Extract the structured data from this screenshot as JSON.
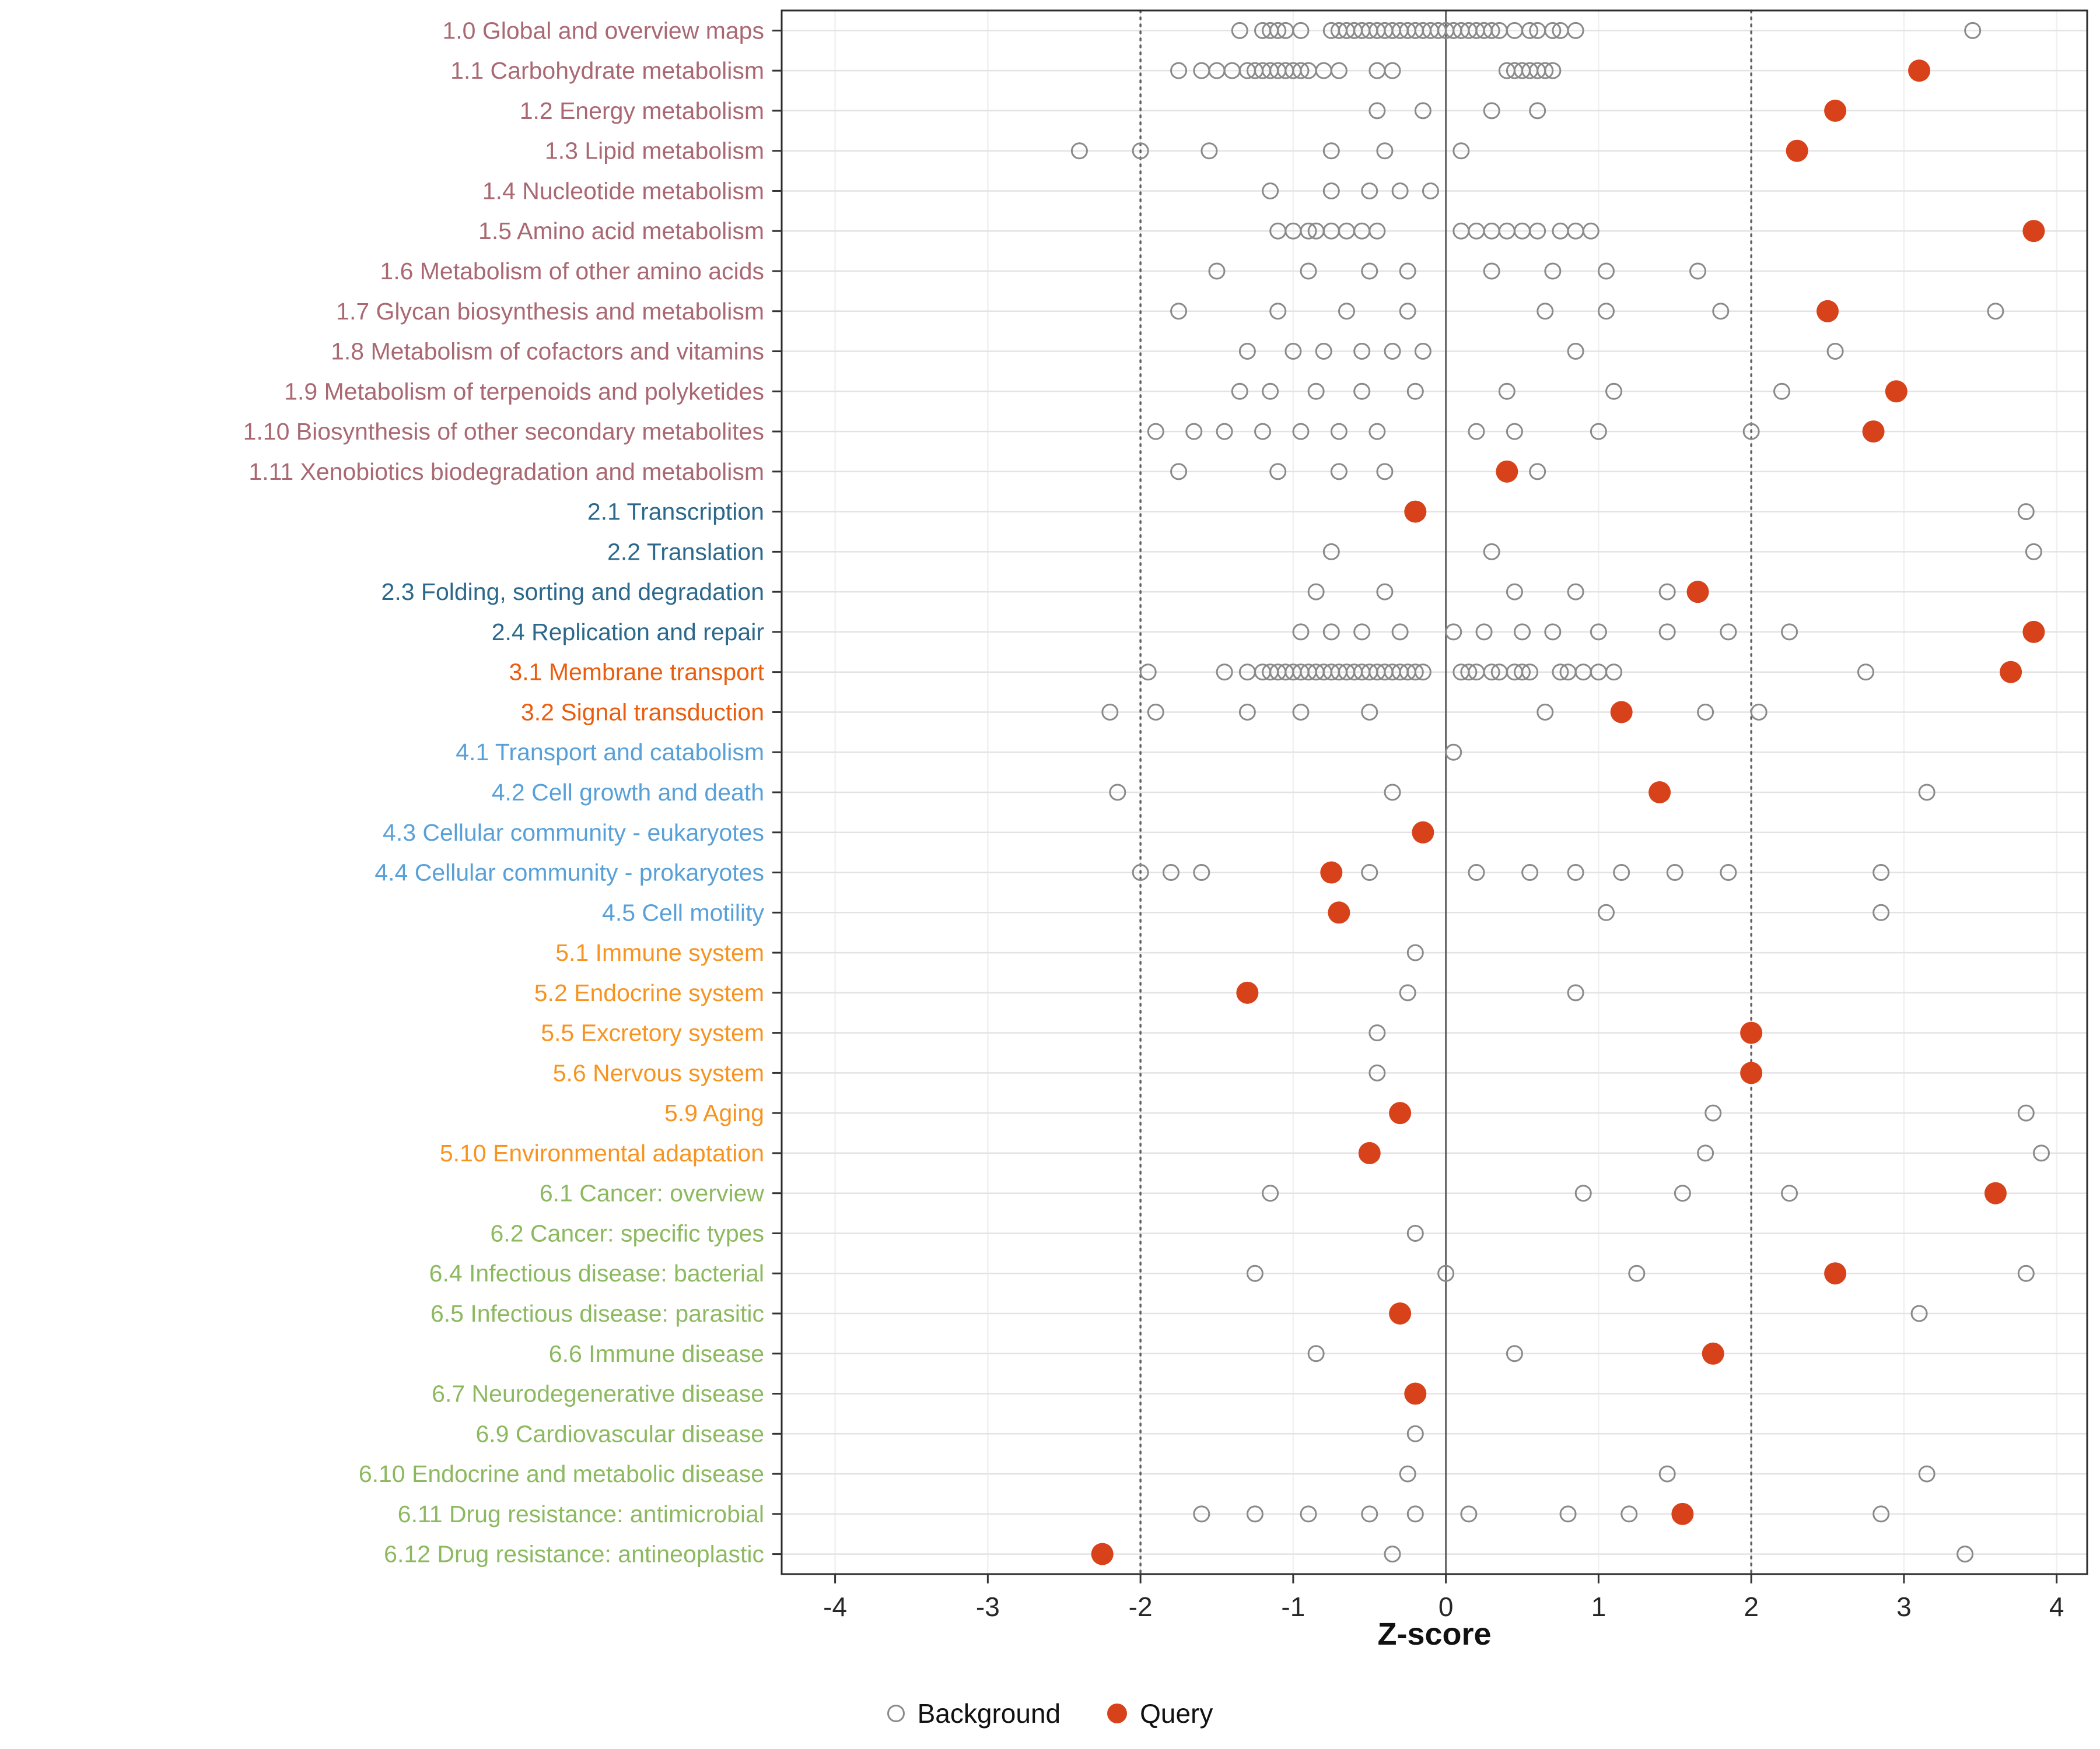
{
  "chart_data": {
    "type": "scatter",
    "title": "",
    "xlabel": "Z-score",
    "ylabel": "",
    "xlim": [
      -4.35,
      4.2
    ],
    "x_ticks": [
      -4,
      -3,
      -2,
      -1,
      0,
      1,
      2,
      3,
      4
    ],
    "grid": true,
    "reference_lines": {
      "solid": [
        0
      ],
      "dotted": [
        -2,
        2
      ]
    },
    "legend_position": "bottom-center",
    "legend": [
      {
        "label": "Background",
        "style": "open"
      },
      {
        "label": "Query",
        "style": "filled"
      }
    ],
    "colors": {
      "background_point": "#8a8a8a",
      "query_point": "#d8421a",
      "grid": "#e3e3e3",
      "minor_grid": "#f0f0f0",
      "reference": "#5f5f5f",
      "axis_text": "#262626",
      "panel_border": "#2b2b2b"
    },
    "group_colors": {
      "metabolism": "#a96872",
      "genetic": "#2b688c",
      "environmental": "#ea5d0e",
      "cellular": "#58a0d8",
      "organismal": "#f79421",
      "disease": "#8cb95f"
    },
    "categories": [
      {
        "label": "1.0 Global and overview maps",
        "group": "metabolism",
        "background": [
          -1.35,
          -1.2,
          -1.15,
          -1.1,
          -1.05,
          -0.95,
          -0.75,
          -0.7,
          -0.65,
          -0.6,
          -0.55,
          -0.5,
          -0.45,
          -0.4,
          -0.35,
          -0.3,
          -0.25,
          -0.2,
          -0.15,
          -0.1,
          -0.05,
          0,
          0.05,
          0.1,
          0.15,
          0.2,
          0.25,
          0.3,
          0.35,
          0.45,
          0.55,
          0.6,
          0.7,
          0.75,
          0.85,
          3.45
        ],
        "query": []
      },
      {
        "label": "1.1 Carbohydrate metabolism",
        "group": "metabolism",
        "background": [
          -1.75,
          -1.6,
          -1.5,
          -1.4,
          -1.3,
          -1.25,
          -1.2,
          -1.15,
          -1.1,
          -1.05,
          -1.0,
          -0.95,
          -0.9,
          -0.8,
          -0.7,
          -0.45,
          -0.35,
          0.4,
          0.45,
          0.5,
          0.55,
          0.6,
          0.65,
          0.7
        ],
        "query": [
          3.1
        ]
      },
      {
        "label": "1.2 Energy metabolism",
        "group": "metabolism",
        "background": [
          -0.45,
          -0.15,
          0.3,
          0.6
        ],
        "query": [
          2.55
        ]
      },
      {
        "label": "1.3 Lipid metabolism",
        "group": "metabolism",
        "background": [
          -2.4,
          -2.0,
          -1.55,
          -0.75,
          -0.4,
          0.1
        ],
        "query": [
          2.3
        ]
      },
      {
        "label": "1.4 Nucleotide metabolism",
        "group": "metabolism",
        "background": [
          -1.15,
          -0.75,
          -0.5,
          -0.3,
          -0.1
        ],
        "query": []
      },
      {
        "label": "1.5 Amino acid metabolism",
        "group": "metabolism",
        "background": [
          -1.1,
          -1.0,
          -0.9,
          -0.85,
          -0.75,
          -0.65,
          -0.55,
          -0.45,
          0.1,
          0.2,
          0.3,
          0.4,
          0.5,
          0.6,
          0.75,
          0.85,
          0.95
        ],
        "query": [
          3.85
        ]
      },
      {
        "label": "1.6 Metabolism of other amino acids",
        "group": "metabolism",
        "background": [
          -1.5,
          -0.9,
          -0.5,
          -0.25,
          0.3,
          0.7,
          1.05,
          1.65
        ],
        "query": []
      },
      {
        "label": "1.7 Glycan biosynthesis and metabolism",
        "group": "metabolism",
        "background": [
          -1.75,
          -1.1,
          -0.65,
          -0.25,
          0.65,
          1.05,
          1.8,
          3.6
        ],
        "query": [
          2.5
        ]
      },
      {
        "label": "1.8 Metabolism of cofactors and vitamins",
        "group": "metabolism",
        "background": [
          -1.3,
          -1.0,
          -0.8,
          -0.55,
          -0.35,
          -0.15,
          0.85,
          2.55
        ],
        "query": []
      },
      {
        "label": "1.9 Metabolism of terpenoids and polyketides",
        "group": "metabolism",
        "background": [
          -1.35,
          -1.15,
          -0.85,
          -0.55,
          -0.2,
          0.4,
          1.1,
          2.2
        ],
        "query": [
          2.95
        ]
      },
      {
        "label": "1.10 Biosynthesis of other secondary metabolites",
        "group": "metabolism",
        "background": [
          -1.9,
          -1.65,
          -1.45,
          -1.2,
          -0.95,
          -0.7,
          -0.45,
          0.2,
          0.45,
          1.0,
          2.0
        ],
        "query": [
          2.8
        ]
      },
      {
        "label": "1.11 Xenobiotics biodegradation and metabolism",
        "group": "metabolism",
        "background": [
          -1.75,
          -1.1,
          -0.7,
          -0.4,
          0.6
        ],
        "query": [
          0.4
        ]
      },
      {
        "label": "2.1 Transcription",
        "group": "genetic",
        "background": [
          3.8
        ],
        "query": [
          -0.2
        ]
      },
      {
        "label": "2.2 Translation",
        "group": "genetic",
        "background": [
          -0.75,
          0.3,
          3.85
        ],
        "query": []
      },
      {
        "label": "2.3 Folding, sorting and degradation",
        "group": "genetic",
        "background": [
          -0.85,
          -0.4,
          0.45,
          0.85,
          1.45
        ],
        "query": [
          1.65
        ]
      },
      {
        "label": "2.4 Replication and repair",
        "group": "genetic",
        "background": [
          -0.95,
          -0.75,
          -0.55,
          -0.3,
          0.05,
          0.25,
          0.5,
          0.7,
          1.0,
          1.45,
          1.85,
          2.25
        ],
        "query": [
          3.85
        ]
      },
      {
        "label": "3.1 Membrane transport",
        "group": "environmental",
        "background": [
          -1.95,
          -1.45,
          -1.3,
          -1.2,
          -1.15,
          -1.1,
          -1.05,
          -1.0,
          -0.95,
          -0.9,
          -0.85,
          -0.8,
          -0.75,
          -0.7,
          -0.65,
          -0.6,
          -0.55,
          -0.5,
          -0.45,
          -0.4,
          -0.35,
          -0.3,
          -0.25,
          -0.2,
          -0.15,
          0.1,
          0.15,
          0.2,
          0.3,
          0.35,
          0.45,
          0.5,
          0.55,
          0.75,
          0.8,
          0.9,
          1.0,
          1.1,
          2.75
        ],
        "query": [
          3.7
        ]
      },
      {
        "label": "3.2 Signal transduction",
        "group": "environmental",
        "background": [
          -2.2,
          -1.9,
          -1.3,
          -0.95,
          -0.5,
          0.65,
          1.7,
          2.05
        ],
        "query": [
          1.15
        ]
      },
      {
        "label": "4.1 Transport and catabolism",
        "group": "cellular",
        "background": [
          0.05
        ],
        "query": []
      },
      {
        "label": "4.2 Cell growth and death",
        "group": "cellular",
        "background": [
          -2.15,
          -0.35,
          3.15
        ],
        "query": [
          1.4
        ]
      },
      {
        "label": "4.3 Cellular community - eukaryotes",
        "group": "cellular",
        "background": [],
        "query": [
          -0.15
        ]
      },
      {
        "label": "4.4 Cellular community - prokaryotes",
        "group": "cellular",
        "background": [
          -2.0,
          -1.8,
          -1.6,
          -0.5,
          0.2,
          0.55,
          0.85,
          1.15,
          1.5,
          1.85,
          2.85
        ],
        "query": [
          -0.75
        ]
      },
      {
        "label": "4.5 Cell motility",
        "group": "cellular",
        "background": [
          1.05,
          2.85
        ],
        "query": [
          -0.7
        ]
      },
      {
        "label": "5.1 Immune system",
        "group": "organismal",
        "background": [
          -0.2
        ],
        "query": []
      },
      {
        "label": "5.2 Endocrine system",
        "group": "organismal",
        "background": [
          -0.25,
          0.85
        ],
        "query": [
          -1.3
        ]
      },
      {
        "label": "5.5 Excretory system",
        "group": "organismal",
        "background": [
          -0.45
        ],
        "query": [
          2.0
        ]
      },
      {
        "label": "5.6 Nervous system",
        "group": "organismal",
        "background": [
          -0.45
        ],
        "query": [
          2.0
        ]
      },
      {
        "label": "5.9 Aging",
        "group": "organismal",
        "background": [
          1.75,
          3.8
        ],
        "query": [
          -0.3
        ]
      },
      {
        "label": "5.10 Environmental adaptation",
        "group": "organismal",
        "background": [
          1.7,
          3.9
        ],
        "query": [
          -0.5
        ]
      },
      {
        "label": "6.1 Cancer: overview",
        "group": "disease",
        "background": [
          -1.15,
          0.9,
          1.55,
          2.25
        ],
        "query": [
          3.6
        ]
      },
      {
        "label": "6.2 Cancer: specific types",
        "group": "disease",
        "background": [
          -0.2
        ],
        "query": []
      },
      {
        "label": "6.4 Infectious disease: bacterial",
        "group": "disease",
        "background": [
          -1.25,
          0.0,
          1.25,
          3.8
        ],
        "query": [
          2.55
        ]
      },
      {
        "label": "6.5 Infectious disease: parasitic",
        "group": "disease",
        "background": [
          3.1
        ],
        "query": [
          -0.3
        ]
      },
      {
        "label": "6.6 Immune disease",
        "group": "disease",
        "background": [
          -0.85,
          0.45
        ],
        "query": [
          1.75
        ]
      },
      {
        "label": "6.7 Neurodegenerative disease",
        "group": "disease",
        "background": [],
        "query": [
          -0.2
        ]
      },
      {
        "label": "6.9 Cardiovascular disease",
        "group": "disease",
        "background": [
          -0.2
        ],
        "query": []
      },
      {
        "label": "6.10 Endocrine and metabolic disease",
        "group": "disease",
        "background": [
          -0.25,
          1.45,
          3.15
        ],
        "query": []
      },
      {
        "label": "6.11 Drug resistance: antimicrobial",
        "group": "disease",
        "background": [
          -1.6,
          -1.25,
          -0.9,
          -0.5,
          -0.2,
          0.15,
          0.8,
          1.2,
          2.85
        ],
        "query": [
          1.55
        ]
      },
      {
        "label": "6.12 Drug resistance: antineoplastic",
        "group": "disease",
        "background": [
          -0.35,
          3.4
        ],
        "query": [
          -2.25
        ]
      }
    ]
  }
}
